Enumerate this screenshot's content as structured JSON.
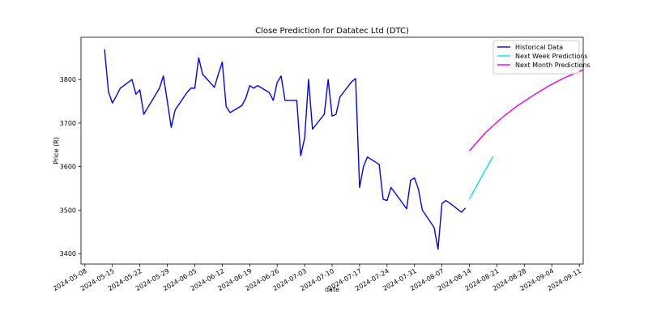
{
  "chart_data": {
    "type": "line",
    "title": "Close Prediction for Datatec Ltd (DTC)",
    "xlabel": "date",
    "ylabel": "Price (R)",
    "xlim": [
      "2024-05-07",
      "2024-09-12"
    ],
    "ylim": [
      3376,
      3897
    ],
    "xticks": [
      "2024-05-08",
      "2024-05-15",
      "2024-05-22",
      "2024-05-29",
      "2024-06-05",
      "2024-06-12",
      "2024-06-19",
      "2024-06-26",
      "2024-07-03",
      "2024-07-10",
      "2024-07-17",
      "2024-07-24",
      "2024-07-31",
      "2024-08-07",
      "2024-08-14",
      "2024-08-21",
      "2024-08-28",
      "2024-09-04",
      "2024-09-11"
    ],
    "yticks": [
      3400,
      3500,
      3600,
      3700,
      3800
    ],
    "legend": "upper right",
    "series": [
      {
        "name": "Historical Data",
        "color": "#0000ff",
        "x": [
          "2024-05-13",
          "2024-05-14",
          "2024-05-15",
          "2024-05-16",
          "2024-05-17",
          "2024-05-20",
          "2024-05-21",
          "2024-05-22",
          "2024-05-23",
          "2024-05-24",
          "2024-05-27",
          "2024-05-28",
          "2024-05-29",
          "2024-05-30",
          "2024-05-31",
          "2024-06-03",
          "2024-06-04",
          "2024-06-05",
          "2024-06-06",
          "2024-06-07",
          "2024-06-10",
          "2024-06-11",
          "2024-06-12",
          "2024-06-13",
          "2024-06-14",
          "2024-06-17",
          "2024-06-18",
          "2024-06-19",
          "2024-06-20",
          "2024-06-21",
          "2024-06-24",
          "2024-06-25",
          "2024-06-26",
          "2024-06-27",
          "2024-06-28",
          "2024-07-01",
          "2024-07-02",
          "2024-07-03",
          "2024-07-04",
          "2024-07-05",
          "2024-07-08",
          "2024-07-09",
          "2024-07-10",
          "2024-07-11",
          "2024-07-12",
          "2024-07-15",
          "2024-07-16",
          "2024-07-17",
          "2024-07-18",
          "2024-07-19",
          "2024-07-22",
          "2024-07-23",
          "2024-07-24",
          "2024-07-25",
          "2024-07-26",
          "2024-07-29",
          "2024-07-30",
          "2024-07-31",
          "2024-08-01",
          "2024-08-02",
          "2024-08-05",
          "2024-08-06",
          "2024-08-07",
          "2024-08-08",
          "2024-08-09",
          "2024-08-12",
          "2024-08-13"
        ],
        "values": [
          3869,
          3772,
          3746,
          3762,
          3780,
          3800,
          3766,
          3776,
          3720,
          3735,
          3780,
          3808,
          3750,
          3690,
          3730,
          3770,
          3780,
          3780,
          3850,
          3812,
          3782,
          3812,
          3840,
          3738,
          3724,
          3740,
          3757,
          3786,
          3780,
          3786,
          3770,
          3752,
          3793,
          3808,
          3752,
          3752,
          3625,
          3665,
          3800,
          3686,
          3720,
          3800,
          3716,
          3720,
          3760,
          3795,
          3802,
          3552,
          3600,
          3622,
          3605,
          3525,
          3522,
          3552,
          3540,
          3503,
          3568,
          3574,
          3548,
          3500,
          3460,
          3410,
          3515,
          3522,
          3516,
          3495,
          3505
        ]
      },
      {
        "name": "Next Week Predictions",
        "color": "#00e5e5",
        "x": [
          "2024-08-14",
          "2024-08-15",
          "2024-08-16",
          "2024-08-17",
          "2024-08-18",
          "2024-08-19",
          "2024-08-20"
        ],
        "values": [
          3525,
          3542,
          3558,
          3575,
          3591,
          3607,
          3623
        ]
      },
      {
        "name": "Next Month Predictions",
        "color": "#e500e5",
        "x": [
          "2024-08-14",
          "2024-08-18",
          "2024-08-22",
          "2024-08-26",
          "2024-08-30",
          "2024-09-03",
          "2024-09-07",
          "2024-09-12"
        ],
        "values": [
          3636,
          3677,
          3710,
          3738,
          3762,
          3784,
          3803,
          3822
        ]
      }
    ]
  }
}
